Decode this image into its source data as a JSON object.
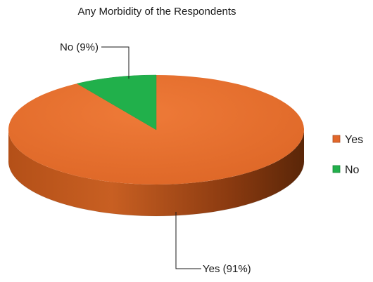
{
  "chart_data": {
    "type": "pie",
    "title": "Any Morbidity of the Respondents",
    "categories": [
      "Yes",
      "No"
    ],
    "values": [
      91,
      9
    ],
    "data_labels": [
      "Yes (91%)",
      "No (9%)"
    ],
    "colors": [
      "#E2672A",
      "#21B04B"
    ],
    "legend": {
      "position": "right",
      "entries": [
        "Yes",
        "No"
      ]
    },
    "style": "3d"
  }
}
